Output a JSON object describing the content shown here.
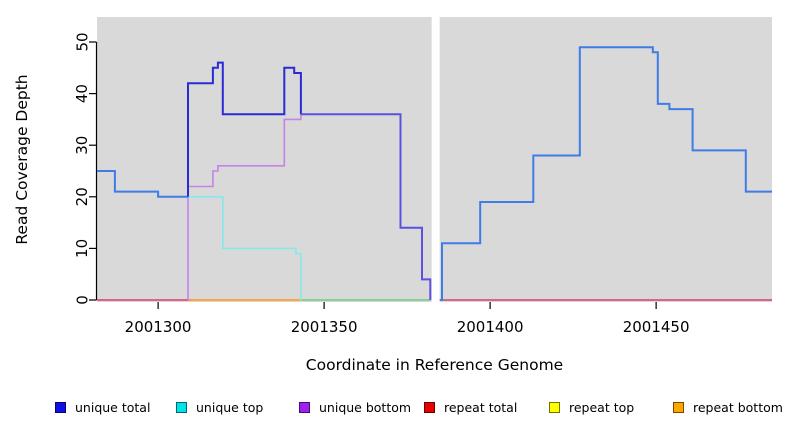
{
  "chart_data": {
    "type": "step-line",
    "title": "",
    "xlabel": "Coordinate in Reference Genome",
    "ylabel": "Read Coverage Depth",
    "xlim": [
      2001281.6,
      2001484.9
    ],
    "ylim": [
      0,
      50
    ],
    "x_ticks": [
      2001300,
      2001350,
      2001400,
      2001450
    ],
    "y_ticks": [
      0,
      10,
      20,
      30,
      40,
      50
    ],
    "grid": false,
    "plot_background": "#D9D9D9",
    "gap_band": {
      "from": 2001382.4,
      "to": 2001384.8,
      "color": "#FFFFFF"
    },
    "legend_position": "bottom",
    "legend": [
      {
        "label": "unique total",
        "color": "#0F0FE8"
      },
      {
        "label": "unique top",
        "color": "#00E3E8"
      },
      {
        "label": "unique bottom",
        "color": "#A020F0"
      },
      {
        "label": "repeat total",
        "color": "#E80000"
      },
      {
        "label": "repeat top",
        "color": "#FFFF00"
      },
      {
        "label": "repeat bottom",
        "color": "#FFA500"
      }
    ],
    "series": [
      {
        "name": "unique total",
        "steps": [
          [
            2001281.6,
            25
          ],
          [
            2001287,
            21
          ],
          [
            2001300,
            20
          ],
          [
            2001309,
            42
          ],
          [
            2001316.5,
            45
          ],
          [
            2001318,
            46
          ],
          [
            2001319.5,
            36
          ],
          [
            2001338,
            45
          ],
          [
            2001341,
            44
          ],
          [
            2001343,
            36
          ],
          [
            2001373,
            14
          ],
          [
            2001379.5,
            4
          ],
          [
            2001382,
            0
          ],
          [
            2001384.8,
            0
          ],
          [
            2001385.5,
            11
          ],
          [
            2001397,
            19
          ],
          [
            2001413,
            28
          ],
          [
            2001427,
            49
          ],
          [
            2001449,
            48
          ],
          [
            2001450.5,
            38
          ],
          [
            2001454,
            37
          ],
          [
            2001461,
            29
          ],
          [
            2001477,
            21
          ],
          [
            2001484.9,
            21
          ]
        ]
      },
      {
        "name": "unique top",
        "steps": [
          [
            2001281.6,
            25
          ],
          [
            2001287,
            21
          ],
          [
            2001300,
            20
          ],
          [
            2001319.5,
            10
          ],
          [
            2001341.5,
            9
          ],
          [
            2001343,
            0
          ],
          [
            2001484.9,
            0
          ]
        ]
      },
      {
        "name": "unique bottom",
        "steps": [
          [
            2001281.6,
            0
          ],
          [
            2001309,
            22
          ],
          [
            2001316.5,
            25
          ],
          [
            2001318,
            26
          ],
          [
            2001338,
            35
          ],
          [
            2001343,
            36
          ],
          [
            2001373,
            14
          ],
          [
            2001379.5,
            4
          ],
          [
            2001382,
            0
          ],
          [
            2001484.9,
            0
          ]
        ]
      },
      {
        "name": "repeat total",
        "steps": [
          [
            2001281.6,
            0
          ],
          [
            2001484.9,
            0
          ]
        ]
      },
      {
        "name": "repeat top",
        "steps": [
          [
            2001281.6,
            0
          ],
          [
            2001484.9,
            0
          ]
        ]
      },
      {
        "name": "repeat bottom",
        "steps": [
          [
            2001281.6,
            0
          ],
          [
            2001484.9,
            0
          ]
        ]
      }
    ],
    "render_segments": [
      {
        "name": "zero-line-left",
        "color": "#D9537A",
        "width": 1.8,
        "points": [
          [
            2001281.6,
            0
          ],
          [
            2001310,
            0
          ]
        ]
      },
      {
        "name": "zero-line-right",
        "color": "#D9537A",
        "width": 1.8,
        "points": [
          [
            2001384.8,
            0
          ],
          [
            2001484.9,
            0
          ]
        ]
      },
      {
        "name": "zero-line-orange",
        "color": "#FF9E2C",
        "width": 1.8,
        "points": [
          [
            2001309,
            0
          ],
          [
            2001342.8,
            0
          ]
        ]
      },
      {
        "name": "zero-line-green",
        "color": "#7CCF90",
        "width": 1.8,
        "points": [
          [
            2001343,
            0
          ],
          [
            2001382,
            0
          ]
        ]
      },
      {
        "name": "unique-bottom-line",
        "color": "#C583E8",
        "width": 1.6,
        "points": [
          [
            2001309,
            0
          ],
          [
            2001309,
            22
          ],
          [
            2001316.5,
            22
          ],
          [
            2001316.5,
            25
          ],
          [
            2001318,
            25
          ],
          [
            2001318,
            26
          ],
          [
            2001338,
            26
          ],
          [
            2001338,
            35
          ],
          [
            2001343,
            35
          ],
          [
            2001343,
            36
          ]
        ]
      },
      {
        "name": "unique-top-line",
        "color": "#85E9E9",
        "width": 1.6,
        "points": [
          [
            2001309,
            20
          ],
          [
            2001319.5,
            20
          ],
          [
            2001319.5,
            10
          ],
          [
            2001341.5,
            10
          ],
          [
            2001341.5,
            9
          ],
          [
            2001343,
            9
          ],
          [
            2001343,
            0
          ]
        ]
      },
      {
        "name": "unique-total-left",
        "color": "#3E7CE8",
        "width": 2,
        "points": [
          [
            2001281.6,
            25
          ],
          [
            2001287,
            25
          ],
          [
            2001287,
            21
          ],
          [
            2001300,
            21
          ],
          [
            2001300,
            20
          ],
          [
            2001309,
            20
          ]
        ]
      },
      {
        "name": "unique-total-mid",
        "color": "#2B2BD5",
        "width": 2,
        "points": [
          [
            2001309,
            20
          ],
          [
            2001309,
            42
          ],
          [
            2001316.5,
            42
          ],
          [
            2001316.5,
            45
          ],
          [
            2001318,
            45
          ],
          [
            2001318,
            46
          ],
          [
            2001319.5,
            46
          ],
          [
            2001319.5,
            36
          ],
          [
            2001338,
            36
          ],
          [
            2001338,
            45
          ],
          [
            2001341,
            45
          ],
          [
            2001341,
            44
          ],
          [
            2001343,
            44
          ],
          [
            2001343,
            36
          ]
        ]
      },
      {
        "name": "unique-total-descent",
        "color": "#5C51DE",
        "width": 2,
        "points": [
          [
            2001343,
            36
          ],
          [
            2001373,
            36
          ],
          [
            2001373,
            14
          ],
          [
            2001379.5,
            14
          ],
          [
            2001379.5,
            4
          ],
          [
            2001382,
            4
          ],
          [
            2001382,
            0
          ]
        ]
      },
      {
        "name": "unique-total-right",
        "color": "#3E7CE8",
        "width": 2,
        "points": [
          [
            2001384.8,
            0
          ],
          [
            2001385.5,
            0
          ],
          [
            2001385.5,
            11
          ],
          [
            2001397,
            11
          ],
          [
            2001397,
            19
          ],
          [
            2001413,
            19
          ],
          [
            2001413,
            28
          ],
          [
            2001427,
            28
          ],
          [
            2001427,
            49
          ],
          [
            2001449,
            49
          ],
          [
            2001449,
            48
          ],
          [
            2001450.5,
            48
          ],
          [
            2001450.5,
            38
          ],
          [
            2001454,
            38
          ],
          [
            2001454,
            37
          ],
          [
            2001461,
            37
          ],
          [
            2001461,
            29
          ],
          [
            2001477,
            29
          ],
          [
            2001477,
            21
          ],
          [
            2001484.9,
            21
          ]
        ]
      }
    ]
  },
  "layout_text": {
    "xlabel": "Coordinate in Reference Genome",
    "ylabel": "Read Coverage Depth"
  }
}
